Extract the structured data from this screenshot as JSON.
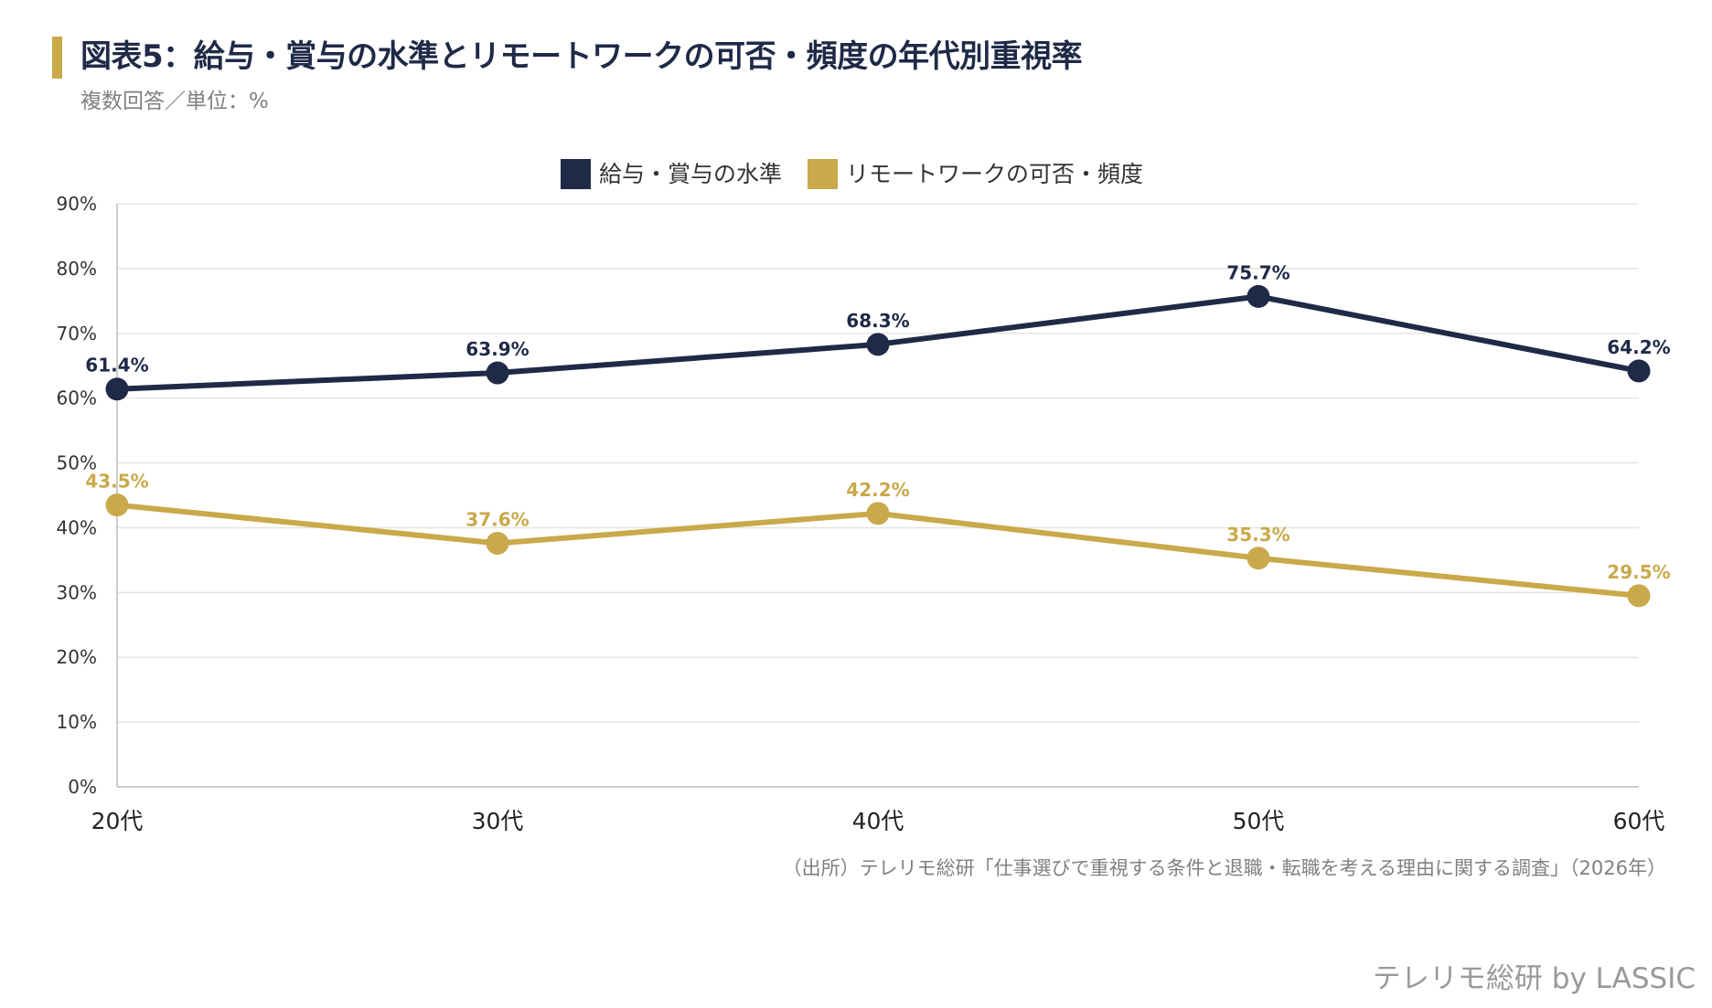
{
  "header": {
    "title": "図表5：給与・賞与の水準とリモートワークの可否・頻度の年代別重視率",
    "subtitle": "複数回答／単位：%"
  },
  "colors": {
    "accent": "#C9A94A",
    "title_text": "#1F2A47",
    "navy": "#1F2A47",
    "gold": "#C9A94A",
    "grid": "#E5E5DD",
    "axis": "#BBBBBB",
    "muted_text": "#808080"
  },
  "chart_data": {
    "type": "line",
    "categories": [
      "20代",
      "30代",
      "40代",
      "50代",
      "60代"
    ],
    "series": [
      {
        "name": "給与・賞与の水準",
        "color": "#1F2A47",
        "values": [
          61.4,
          63.9,
          68.3,
          75.7,
          64.2
        ],
        "labels": [
          "61.4%",
          "63.9%",
          "68.3%",
          "75.7%",
          "64.2%"
        ]
      },
      {
        "name": "リモートワークの可否・頻度",
        "color": "#C9A94A",
        "values": [
          43.5,
          37.6,
          42.2,
          35.3,
          29.5
        ],
        "labels": [
          "43.5%",
          "37.6%",
          "42.2%",
          "35.3%",
          "29.5%"
        ]
      }
    ],
    "ylim": [
      0,
      90
    ],
    "yticks": [
      0,
      10,
      20,
      30,
      40,
      50,
      60,
      70,
      80,
      90
    ],
    "ytick_labels": [
      "0%",
      "10%",
      "20%",
      "30%",
      "40%",
      "50%",
      "60%",
      "70%",
      "80%",
      "90%"
    ],
    "grid": true,
    "legend": "top-center"
  },
  "footer": {
    "source": "（出所）テレリモ総研「仕事選びで重視する条件と退職・転職を考える理由に関する調査」（2026年）",
    "brand": "テレリモ総研 by LASSIC"
  }
}
